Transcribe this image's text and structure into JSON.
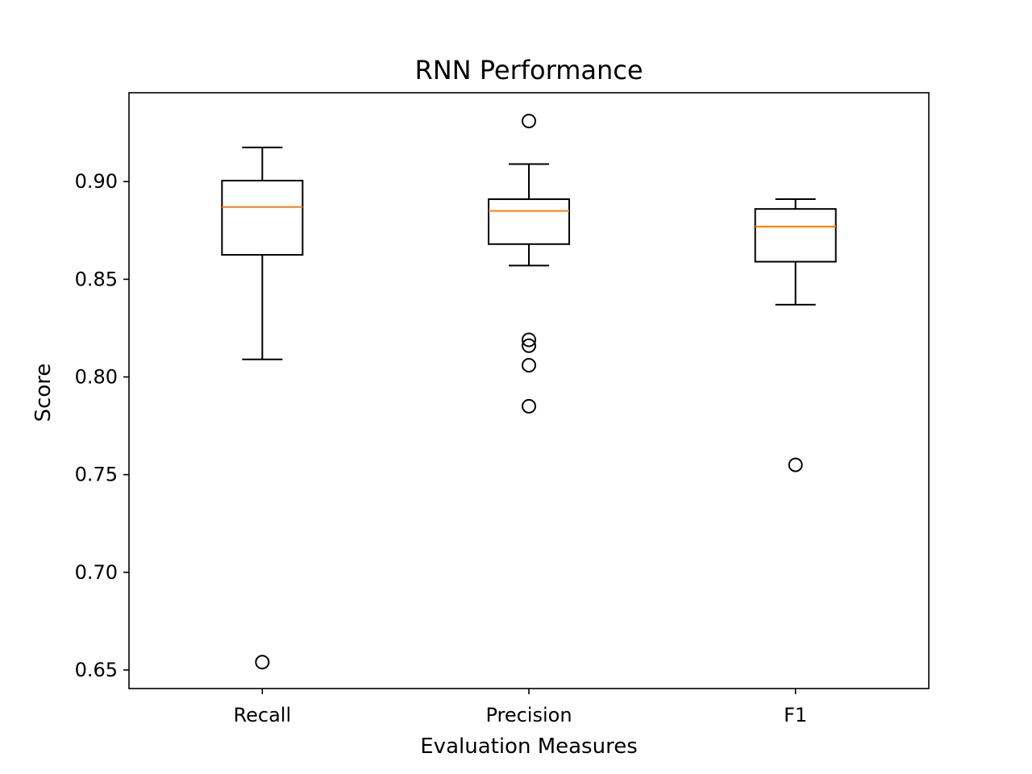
{
  "chart_data": {
    "type": "boxplot",
    "title": "RNN Performance",
    "xlabel": "Evaluation Measures",
    "ylabel": "Score",
    "ylim": [
      0.6405,
      0.9455
    ],
    "yticks": [
      "0.65",
      "0.70",
      "0.75",
      "0.80",
      "0.85",
      "0.90"
    ],
    "grid": false,
    "categories": [
      "Recall",
      "Precision",
      "F1"
    ],
    "boxes": [
      {
        "category": "Recall",
        "whisker_low": 0.809,
        "q1": 0.8625,
        "median": 0.887,
        "q3": 0.9005,
        "whisker_high": 0.9175,
        "outliers": [
          0.654
        ]
      },
      {
        "category": "Precision",
        "whisker_low": 0.857,
        "q1": 0.868,
        "median": 0.885,
        "q3": 0.891,
        "whisker_high": 0.909,
        "outliers": [
          0.931,
          0.819,
          0.816,
          0.806,
          0.785
        ]
      },
      {
        "category": "F1",
        "whisker_low": 0.837,
        "q1": 0.859,
        "median": 0.877,
        "q3": 0.886,
        "whisker_high": 0.891,
        "outliers": [
          0.755
        ]
      }
    ],
    "colors": {
      "box": "#000000",
      "median": "#ff7f0e",
      "background": "#ffffff"
    }
  }
}
